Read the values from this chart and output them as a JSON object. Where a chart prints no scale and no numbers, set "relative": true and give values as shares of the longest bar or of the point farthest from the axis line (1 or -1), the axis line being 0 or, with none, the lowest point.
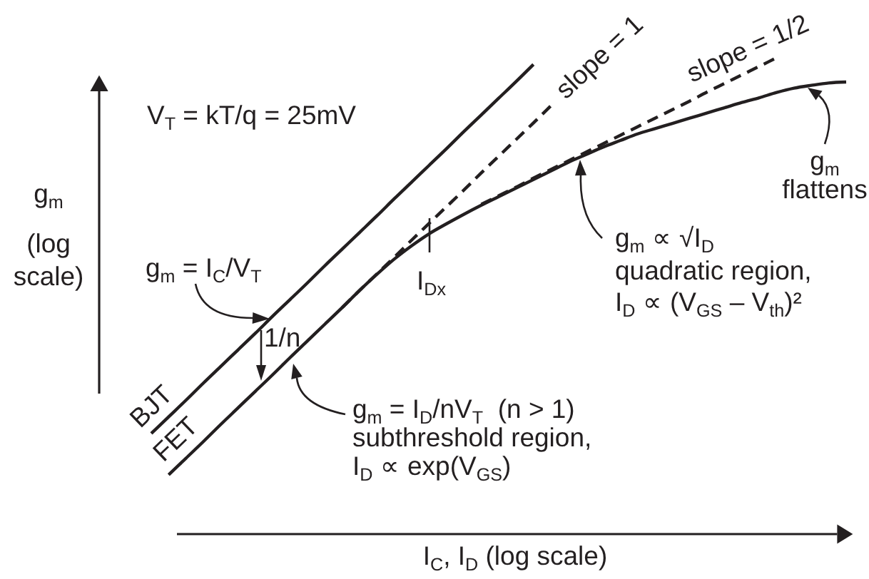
{
  "chart_data": {
    "type": "line",
    "relative": true,
    "xlabel": "I$_{C}$, I$_{D}$ (log scale)",
    "ylabel": "g$_{m}$ (log scale)",
    "categories": [
      null,
      null,
      null,
      null,
      null,
      null,
      null,
      null,
      null,
      null,
      null,
      null,
      null,
      null,
      null,
      null,
      null,
      null,
      null,
      null,
      null,
      null,
      null,
      null,
      null,
      null,
      null,
      null,
      null,
      null,
      null,
      null,
      null,
      null,
      null,
      null,
      null,
      null,
      null,
      null,
      null
    ],
    "series": [
      {
        "name": "BJT",
        "color": "#231f20",
        "line_style": "solid",
        "values": [
          0.21,
          0.245,
          0.28,
          0.316,
          0.351,
          0.386,
          0.421,
          0.457,
          0.492,
          0.527,
          0.563,
          0.598,
          0.633,
          0.668,
          0.704,
          0.739,
          0.774,
          0.809,
          0.845,
          0.88,
          0.915,
          0.95,
          0.986,
          null,
          null,
          null,
          null,
          null,
          null,
          null,
          null,
          null,
          null,
          null,
          null,
          null,
          null,
          null,
          null,
          null,
          null
        ]
      },
      {
        "name": "FET",
        "color": "#231f20",
        "line_style": "solid",
        "values": [
          null,
          0.123,
          0.158,
          0.193,
          0.229,
          0.264,
          0.299,
          0.334,
          0.37,
          0.405,
          0.44,
          0.475,
          0.511,
          0.545,
          0.577,
          0.605,
          0.63,
          0.651,
          0.671,
          0.69,
          0.708,
          0.726,
          0.744,
          0.762,
          0.78,
          0.796,
          0.812,
          0.826,
          0.84,
          0.851,
          0.862,
          0.873,
          0.884,
          0.895,
          0.906,
          0.916,
          0.927,
          0.936,
          0.942,
          0.947,
          0.949
        ]
      },
      {
        "name": "slope = 1",
        "color": "#231f20",
        "line_style": "dashed",
        "values": [
          null,
          null,
          null,
          null,
          null,
          null,
          null,
          null,
          null,
          null,
          null,
          0.475,
          0.511,
          0.546,
          0.581,
          0.617,
          0.652,
          0.687,
          0.722,
          0.758,
          0.793,
          0.828,
          0.863,
          0.899,
          null,
          null,
          null,
          null,
          null,
          null,
          null,
          null,
          null,
          null,
          null,
          null,
          null,
          null,
          null,
          null,
          null
        ]
      },
      {
        "name": "slope = 1/2",
        "color": "#231f20",
        "line_style": "dashed",
        "values": [
          null,
          null,
          null,
          null,
          null,
          null,
          null,
          null,
          null,
          null,
          null,
          null,
          null,
          null,
          null,
          null,
          null,
          null,
          null,
          0.692,
          0.71,
          0.728,
          0.747,
          0.765,
          0.783,
          0.801,
          0.819,
          0.837,
          0.855,
          0.873,
          0.891,
          0.909,
          0.928,
          0.946,
          0.964,
          0.982,
          1.0,
          null,
          null,
          null,
          null
        ]
      }
    ],
    "annotations": [
      "V$_{T}$ = kT/q = 25mV",
      "g$_{m}$ = I$_{C}$/V$_{T}$",
      "1/n",
      "I$_{Dx}$",
      "g$_{m}$ = I$_{D}$/nV$_{T}$  (n > 1)",
      "subthreshold region,",
      "I$_{D}$ ∝ exp(V$_{GS}$)",
      "g$_{m}$ ∝ √I$_{D}$",
      "quadratic region,",
      "I$_{D}$ ∝ (V$_{GS}$ – V$_{th}$)²",
      "g$_{m}$ flattens"
    ]
  }
}
